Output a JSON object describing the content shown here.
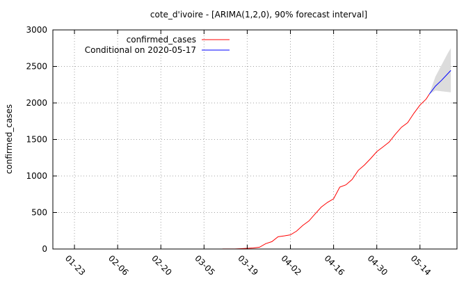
{
  "chart_data": {
    "type": "line",
    "title": "cote_d'ivoire -  [ARIMA(1,2,0), 90% forecast interval]",
    "xlabel": "",
    "ylabel": "confirmed_cases",
    "ylim": [
      0,
      3000
    ],
    "yticks": [
      0,
      500,
      1000,
      1500,
      2000,
      2500,
      3000
    ],
    "xlim": [
      "2020-01-16",
      "2020-05-26"
    ],
    "xticks": [
      "01-23",
      "02-06",
      "02-20",
      "03-05",
      "03-19",
      "04-02",
      "04-16",
      "04-30",
      "05-14"
    ],
    "grid": true,
    "legend_position": "top-left",
    "colors": {
      "observed": "#ff0000",
      "forecast": "#0000ff",
      "interval": "#dcdcdc"
    },
    "series": [
      {
        "name": "confirmed_cases",
        "x": [
          "2020-03-11",
          "2020-03-13",
          "2020-03-15",
          "2020-03-17",
          "2020-03-19",
          "2020-03-21",
          "2020-03-23",
          "2020-03-25",
          "2020-03-27",
          "2020-03-29",
          "2020-03-31",
          "2020-04-02",
          "2020-04-04",
          "2020-04-06",
          "2020-04-08",
          "2020-04-10",
          "2020-04-12",
          "2020-04-14",
          "2020-04-16",
          "2020-04-18",
          "2020-04-20",
          "2020-04-22",
          "2020-04-24",
          "2020-04-26",
          "2020-04-28",
          "2020-04-30",
          "2020-05-02",
          "2020-05-04",
          "2020-05-06",
          "2020-05-08",
          "2020-05-10",
          "2020-05-12",
          "2020-05-14",
          "2020-05-16",
          "2020-05-17"
        ],
        "values": [
          1,
          1,
          1,
          5,
          9,
          14,
          25,
          73,
          101,
          168,
          180,
          194,
          245,
          323,
          384,
          480,
          574,
          638,
          688,
          847,
          879,
          952,
          1077,
          1150,
          1238,
          1333,
          1398,
          1464,
          1571,
          1667,
          1730,
          1857,
          1971,
          2053,
          2119
        ]
      },
      {
        "name": "Conditional on 2020-05-17",
        "x": [
          "2020-05-17",
          "2020-05-19",
          "2020-05-21",
          "2020-05-23",
          "2020-05-24"
        ],
        "values": [
          2119,
          2230,
          2310,
          2400,
          2445
        ],
        "interval_lower": [
          2119,
          2170,
          2160,
          2150,
          2145
        ],
        "interval_upper": [
          2119,
          2360,
          2520,
          2680,
          2750
        ]
      }
    ]
  }
}
